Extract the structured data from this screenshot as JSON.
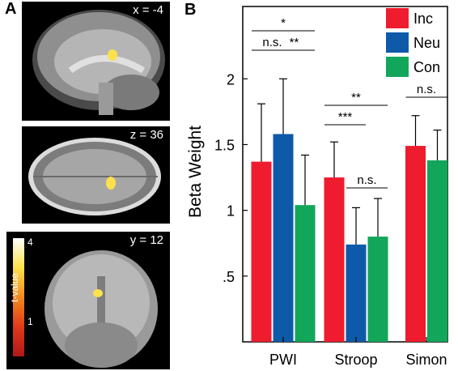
{
  "panel_a": {
    "label": "A",
    "slices": [
      {
        "coord": "x = -4"
      },
      {
        "coord": "z = 36"
      },
      {
        "coord": "y = 12"
      }
    ],
    "colorbar": {
      "title": "t-value",
      "max_label": "4",
      "min_label": "1",
      "colors": [
        "#b01818",
        "#e03a1a",
        "#f28a1f",
        "#fde14a",
        "#ffffff"
      ]
    }
  },
  "chart_data": {
    "panel_label": "B",
    "type": "bar",
    "categories": [
      "PWI",
      "Stroop",
      "Simon"
    ],
    "series": [
      {
        "name": "Inc",
        "color": "#ee1c2e",
        "values": [
          1.37,
          1.25,
          1.49
        ],
        "errors": [
          0.44,
          0.27,
          0.23
        ]
      },
      {
        "name": "Neu",
        "color": "#0e5aa8",
        "values": [
          1.58,
          0.74,
          null
        ],
        "errors": [
          0.42,
          0.28,
          null
        ]
      },
      {
        "name": "Con",
        "color": "#12a65a",
        "values": [
          1.04,
          0.8,
          1.38
        ],
        "errors": [
          0.38,
          0.29,
          0.23
        ]
      }
    ],
    "ylabel": "Beta Weight",
    "xlabel": "",
    "ylim": [
      0.0,
      2.55
    ],
    "yticks": [
      0.5,
      1.0,
      1.5,
      2.0
    ],
    "ytick_labels": [
      ".5",
      "1",
      "1.5",
      "2"
    ],
    "legend_position": "top-right",
    "significance": [
      {
        "category": "PWI",
        "from": "Inc",
        "to": "Con",
        "label": "*"
      },
      {
        "category": "PWI",
        "from": "Inc",
        "to": "Neu",
        "label": "n.s."
      },
      {
        "category": "PWI",
        "from": "Neu",
        "to": "Con",
        "label": "**"
      },
      {
        "category": "Stroop",
        "from": "Inc",
        "to": "Con",
        "label": "**"
      },
      {
        "category": "Stroop",
        "from": "Inc",
        "to": "Neu",
        "label": "***"
      },
      {
        "category": "Stroop",
        "from": "Neu",
        "to": "Con",
        "label": "n.s."
      },
      {
        "category": "Simon",
        "from": "Inc",
        "to": "Con",
        "label": "n.s."
      }
    ]
  }
}
